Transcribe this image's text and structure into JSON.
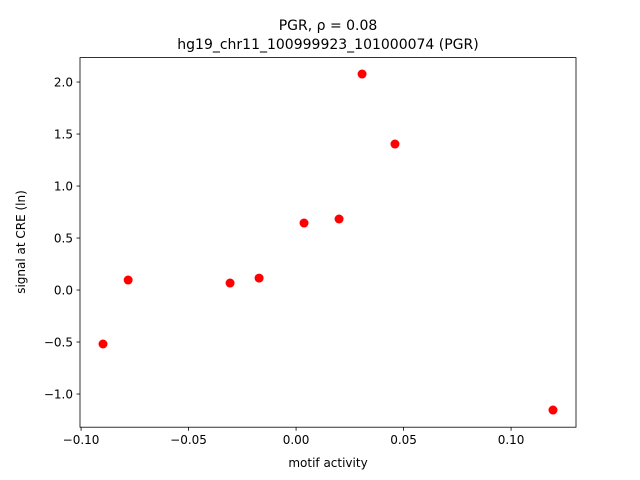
{
  "chart_data": {
    "type": "scatter",
    "title": "PGR, ρ = 0.08",
    "subtitle": "hg19_chr11_100999923_101000074 (PGR)",
    "x_label": "motif activity",
    "y_label": "signal at CRE (ln)",
    "color": "#ff0000",
    "x": [
      -0.0898,
      -0.0781,
      -0.0307,
      -0.0172,
      0.0037,
      0.02,
      0.0307,
      0.046,
      0.1195
    ],
    "values": [
      -0.519,
      0.096,
      0.067,
      0.115,
      0.644,
      0.683,
      2.077,
      1.404,
      -1.154
    ],
    "xlim": [
      -0.1005,
      0.1302
    ],
    "ylim": [
      -1.319,
      2.235
    ],
    "xticks": [
      {
        "value": -0.1,
        "label": "−0.10"
      },
      {
        "value": -0.05,
        "label": "−0.05"
      },
      {
        "value": 0,
        "label": "0.00"
      },
      {
        "value": 0.05,
        "label": "0.05"
      },
      {
        "value": 0.1,
        "label": "0.10"
      }
    ],
    "yticks": [
      {
        "value": -1,
        "label": "−1.0"
      },
      {
        "value": -0.5,
        "label": "−0.5"
      },
      {
        "value": 0,
        "label": "0.0"
      },
      {
        "value": 0.5,
        "label": "0.5"
      },
      {
        "value": 1,
        "label": "1.0"
      },
      {
        "value": 1.5,
        "label": "1.5"
      },
      {
        "value": 2,
        "label": "2.0"
      }
    ]
  }
}
